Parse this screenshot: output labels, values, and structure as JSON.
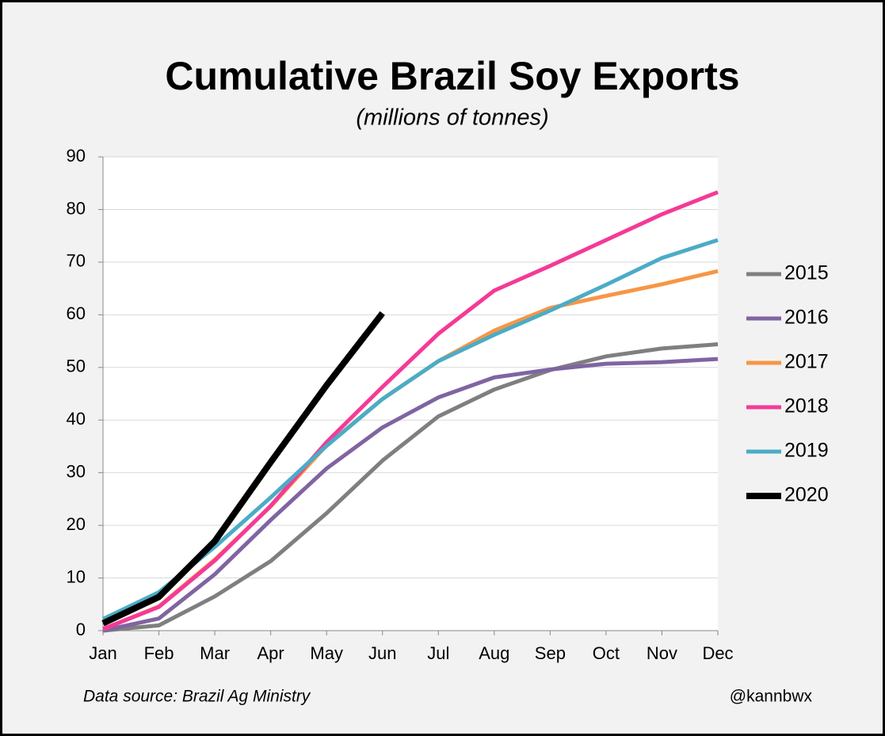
{
  "chart_data": {
    "type": "line",
    "title": "Cumulative Brazil Soy Exports",
    "subtitle": "(millions of tonnes)",
    "source": "Data source: Brazil Ag Ministry",
    "credit": "@kannbwx",
    "categories": [
      "Jan",
      "Feb",
      "Mar",
      "Apr",
      "May",
      "Jun",
      "Jul",
      "Aug",
      "Sep",
      "Oct",
      "Nov",
      "Dec"
    ],
    "series": [
      {
        "name": "2015",
        "color": "#7f7f7f",
        "values": [
          0,
          1,
          6.5,
          13.2,
          22.3,
          32.3,
          40.7,
          45.8,
          49.5,
          52.1,
          53.6,
          54.4
        ]
      },
      {
        "name": "2016",
        "color": "#8064a2",
        "values": [
          0,
          2.3,
          10.7,
          21,
          30.8,
          38.6,
          44.3,
          48.1,
          49.6,
          50.7,
          51,
          51.6
        ]
      },
      {
        "name": "2017",
        "color": "#f79646",
        "values": [
          0.3,
          4.6,
          13.5,
          23.6,
          35.2,
          44,
          51.2,
          57,
          61.3,
          63.6,
          65.8,
          68.3
        ]
      },
      {
        "name": "2018",
        "color": "#f43a97",
        "values": [
          0.3,
          4.5,
          13.3,
          23.7,
          35.8,
          46.3,
          56.4,
          64.6,
          69.3,
          74.2,
          79.1,
          83.3
        ]
      },
      {
        "name": "2019",
        "color": "#4bacc6",
        "values": [
          2.2,
          7.3,
          15.9,
          25.3,
          35.1,
          44,
          51.2,
          56.2,
          60.8,
          65.7,
          70.8,
          74.2
        ]
      },
      {
        "name": "2020",
        "color": "#000000",
        "values": [
          1.4,
          6.4,
          17,
          32,
          46.6,
          60.3,
          null,
          null,
          null,
          null,
          null,
          null
        ]
      }
    ],
    "ylim": [
      0,
      90
    ],
    "yticks": [
      0,
      10,
      20,
      30,
      40,
      50,
      60,
      70,
      80,
      90
    ],
    "grid": true,
    "legend": "right"
  }
}
